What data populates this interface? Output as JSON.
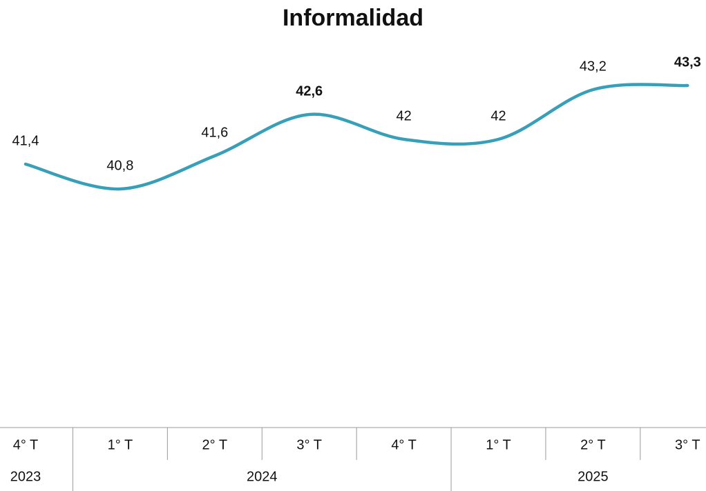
{
  "chart_data": {
    "type": "line",
    "title": "Informalidad",
    "categories": [
      "4° T",
      "1° T",
      "2° T",
      "3° T",
      "4° T",
      "1° T",
      "2° T",
      "3° T"
    ],
    "year_groups": [
      {
        "label": "2023",
        "count": 1
      },
      {
        "label": "2024",
        "count": 4
      },
      {
        "label": "2025",
        "count": 3
      }
    ],
    "series": [
      {
        "name": "Informalidad",
        "color": "#379fb8",
        "values": [
          41.4,
          40.8,
          41.6,
          42.6,
          42,
          42,
          43.2,
          43.3
        ],
        "value_labels": [
          "41,4",
          "40,8",
          "41,6",
          "42,6",
          "42",
          "42",
          "43,2",
          "43,3"
        ],
        "bold_value_labels": [
          3,
          7
        ]
      }
    ],
    "ylim": [
      35,
      45
    ],
    "smooth": true
  }
}
